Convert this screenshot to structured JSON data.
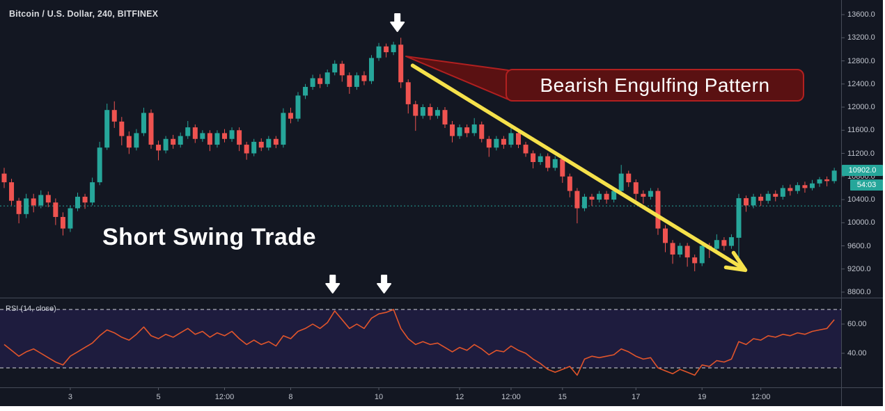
{
  "title": "Bitcoin / U.S. Dollar, 240, BITFINEX",
  "annotations": {
    "pattern_callout": "Bearish Engulfing Pattern",
    "trade_label": "Short Swing Trade",
    "colors": {
      "callout_fill": "#5a1112",
      "callout_border": "#b22020",
      "trend_arrow_yellow": "#f5e14b",
      "marker_arrow_white": "#ffffff"
    },
    "trend_arrow": {
      "from_index": 55.6,
      "from_price": 12720,
      "to_index": 100.9,
      "to_price": 9180
    },
    "price_arrow_index": 54,
    "rsi_arrow_indices": [
      45,
      52
    ]
  },
  "price_scale": {
    "ticks": [
      "13600.0",
      "13200.0",
      "12800.0",
      "12400.0",
      "12000.0",
      "11600.0",
      "11200.0",
      "10800.0",
      "10400.0",
      "10000.0",
      "9600.0",
      "9200.0",
      "8800.0"
    ],
    "last_price_badge": "10902.0",
    "countdown_badge": "54:03"
  },
  "time_scale": {
    "ticks": [
      {
        "label": "3",
        "index": 9
      },
      {
        "label": "5",
        "index": 21
      },
      {
        "label": "12:00",
        "index": 30
      },
      {
        "label": "8",
        "index": 39
      },
      {
        "label": "10",
        "index": 51
      },
      {
        "label": "12",
        "index": 62
      },
      {
        "label": "12:00",
        "index": 69
      },
      {
        "label": "15",
        "index": 76
      },
      {
        "label": "17",
        "index": 86
      },
      {
        "label": "19",
        "index": 95
      },
      {
        "label": "12:00",
        "index": 103
      }
    ]
  },
  "chart_data": {
    "type": "candlestick",
    "title": "Bitcoin / U.S. Dollar, 240, BITFINEX",
    "symbol": "Bitcoin / U.S. Dollar",
    "interval": "240",
    "exchange": "BITFINEX",
    "price_axis": {
      "min": 8800,
      "max": 13600,
      "tick_step": 400
    },
    "last_price": 10902.0,
    "baseline_price": 10290,
    "colors": {
      "up": "#26a69a",
      "down": "#ef5350",
      "background": "#131722",
      "baseline": "#26a69a"
    },
    "candles": [
      [
        10850,
        10950,
        10600,
        10700
      ],
      [
        10700,
        10760,
        10300,
        10380
      ],
      [
        10380,
        10430,
        9990,
        10150
      ],
      [
        10150,
        10500,
        10080,
        10420
      ],
      [
        10420,
        10500,
        10180,
        10300
      ],
      [
        10300,
        10560,
        10250,
        10480
      ],
      [
        10480,
        10540,
        10270,
        10350
      ],
      [
        10350,
        10420,
        9960,
        10100
      ],
      [
        10100,
        10180,
        9780,
        9900
      ],
      [
        9900,
        10300,
        9840,
        10250
      ],
      [
        10250,
        10520,
        10200,
        10450
      ],
      [
        10450,
        10500,
        10240,
        10350
      ],
      [
        10350,
        10780,
        10300,
        10700
      ],
      [
        10700,
        11400,
        10650,
        11300
      ],
      [
        11300,
        12060,
        11260,
        11950
      ],
      [
        11950,
        12100,
        11640,
        11750
      ],
      [
        11750,
        11830,
        11340,
        11500
      ],
      [
        11500,
        11580,
        11190,
        11300
      ],
      [
        11300,
        11620,
        11250,
        11550
      ],
      [
        11550,
        11990,
        11500,
        11900
      ],
      [
        11900,
        11960,
        11280,
        11350
      ],
      [
        11350,
        11420,
        11080,
        11250
      ],
      [
        11250,
        11500,
        11200,
        11450
      ],
      [
        11450,
        11520,
        11280,
        11350
      ],
      [
        11350,
        11560,
        11300,
        11500
      ],
      [
        11500,
        11760,
        11450,
        11650
      ],
      [
        11650,
        11700,
        11380,
        11450
      ],
      [
        11450,
        11600,
        11400,
        11550
      ],
      [
        11550,
        11600,
        11240,
        11350
      ],
      [
        11350,
        11600,
        11300,
        11550
      ],
      [
        11550,
        11620,
        11390,
        11450
      ],
      [
        11450,
        11650,
        11400,
        11600
      ],
      [
        11600,
        11650,
        11240,
        11350
      ],
      [
        11350,
        11400,
        11090,
        11200
      ],
      [
        11200,
        11450,
        11150,
        11400
      ],
      [
        11400,
        11460,
        11240,
        11300
      ],
      [
        11300,
        11500,
        11250,
        11450
      ],
      [
        11450,
        11500,
        11290,
        11350
      ],
      [
        11350,
        11980,
        11300,
        11900
      ],
      [
        11900,
        11990,
        11720,
        11800
      ],
      [
        11800,
        12260,
        11750,
        12200
      ],
      [
        12200,
        12400,
        12140,
        12350
      ],
      [
        12350,
        12560,
        12300,
        12500
      ],
      [
        12500,
        12570,
        12330,
        12400
      ],
      [
        12400,
        12650,
        12350,
        12600
      ],
      [
        12600,
        12810,
        12550,
        12750
      ],
      [
        12750,
        12800,
        12440,
        12550
      ],
      [
        12550,
        12600,
        12230,
        12350
      ],
      [
        12350,
        12600,
        12300,
        12550
      ],
      [
        12550,
        12620,
        12380,
        12450
      ],
      [
        12450,
        12900,
        12400,
        12850
      ],
      [
        12850,
        13110,
        12800,
        13050
      ],
      [
        13050,
        13100,
        12860,
        12950
      ],
      [
        12950,
        13130,
        12900,
        13080
      ],
      [
        13080,
        13200,
        12330,
        12430
      ],
      [
        12430,
        12480,
        11890,
        12050
      ],
      [
        12050,
        12110,
        11590,
        11850
      ],
      [
        11850,
        12050,
        11800,
        12000
      ],
      [
        12000,
        12060,
        11780,
        11850
      ],
      [
        11850,
        12000,
        11800,
        11950
      ],
      [
        11950,
        12000,
        11640,
        11700
      ],
      [
        11700,
        11760,
        11390,
        11500
      ],
      [
        11500,
        11700,
        11450,
        11650
      ],
      [
        11650,
        11700,
        11480,
        11550
      ],
      [
        11550,
        11810,
        11500,
        11700
      ],
      [
        11700,
        11750,
        11390,
        11450
      ],
      [
        11450,
        11500,
        11140,
        11300
      ],
      [
        11300,
        11500,
        11250,
        11450
      ],
      [
        11450,
        11500,
        11280,
        11350
      ],
      [
        11350,
        11660,
        11300,
        11550
      ],
      [
        11550,
        11600,
        11290,
        11350
      ],
      [
        11350,
        11400,
        11140,
        11200
      ],
      [
        11200,
        11250,
        10940,
        11050
      ],
      [
        11050,
        11200,
        11000,
        11150
      ],
      [
        11150,
        11200,
        10890,
        10950
      ],
      [
        10950,
        11150,
        10900,
        11100
      ],
      [
        11100,
        11150,
        10690,
        10800
      ],
      [
        10800,
        10850,
        10440,
        10550
      ],
      [
        10550,
        10600,
        9990,
        10250
      ],
      [
        10250,
        10500,
        10200,
        10450
      ],
      [
        10450,
        10500,
        10290,
        10400
      ],
      [
        10400,
        10550,
        10350,
        10500
      ],
      [
        10500,
        10550,
        10330,
        10400
      ],
      [
        10400,
        10600,
        10350,
        10550
      ],
      [
        10550,
        11000,
        10500,
        10850
      ],
      [
        10850,
        10900,
        10620,
        10700
      ],
      [
        10700,
        10750,
        10390,
        10500
      ],
      [
        10500,
        10560,
        10330,
        10450
      ],
      [
        10450,
        10600,
        10400,
        10550
      ],
      [
        10550,
        10600,
        9790,
        9900
      ],
      [
        9900,
        9960,
        9490,
        9650
      ],
      [
        9650,
        9700,
        9290,
        9450
      ],
      [
        9450,
        9650,
        9400,
        9600
      ],
      [
        9600,
        9650,
        9240,
        9400
      ],
      [
        9400,
        9450,
        9160,
        9300
      ],
      [
        9300,
        9650,
        9250,
        9600
      ],
      [
        9600,
        9650,
        9390,
        9550
      ],
      [
        9550,
        9800,
        9500,
        9700
      ],
      [
        9700,
        9750,
        9520,
        9600
      ],
      [
        9600,
        9800,
        9550,
        9750
      ],
      [
        9740,
        10500,
        9250,
        10425
      ],
      [
        10425,
        10470,
        10190,
        10300
      ],
      [
        10300,
        10500,
        10250,
        10450
      ],
      [
        10450,
        10500,
        10290,
        10380
      ],
      [
        10380,
        10550,
        10330,
        10500
      ],
      [
        10500,
        10560,
        10370,
        10450
      ],
      [
        10450,
        10650,
        10400,
        10600
      ],
      [
        10600,
        10660,
        10470,
        10550
      ],
      [
        10550,
        10700,
        10500,
        10650
      ],
      [
        10650,
        10710,
        10520,
        10600
      ],
      [
        10600,
        10740,
        10560,
        10680
      ],
      [
        10680,
        10790,
        10620,
        10750
      ],
      [
        10750,
        10800,
        10630,
        10720
      ],
      [
        10720,
        10950,
        10680,
        10902
      ]
    ],
    "indicator": {
      "name": "RSI (14, close)",
      "type": "line",
      "color": "#e2552b",
      "bands": [
        70,
        30
      ],
      "ticks": [
        60,
        40
      ],
      "tick_labels": [
        "60.00",
        "40.00"
      ],
      "values": [
        46,
        42,
        38,
        41,
        43,
        40,
        37,
        34,
        32,
        38,
        41,
        44,
        47,
        52,
        56,
        54,
        51,
        49,
        53,
        58,
        52,
        50,
        53,
        51,
        54,
        57,
        53,
        55,
        51,
        54,
        52,
        55,
        50,
        46,
        49,
        46,
        48,
        45,
        52,
        50,
        55,
        57,
        60,
        57,
        61,
        69,
        63,
        57,
        60,
        57,
        64,
        67,
        68,
        70,
        57,
        50,
        46,
        48,
        46,
        47,
        44,
        41,
        44,
        42,
        46,
        43,
        39,
        42,
        41,
        45,
        42,
        40,
        36,
        33,
        29,
        27,
        29,
        31,
        25,
        36,
        38,
        37,
        38,
        39,
        43,
        41,
        38,
        36,
        37,
        30,
        28,
        26,
        29,
        27,
        25,
        32,
        31,
        35,
        34,
        36,
        48,
        46,
        50,
        49,
        52,
        51,
        53,
        52,
        54,
        53,
        55,
        56,
        57,
        63
      ]
    }
  }
}
